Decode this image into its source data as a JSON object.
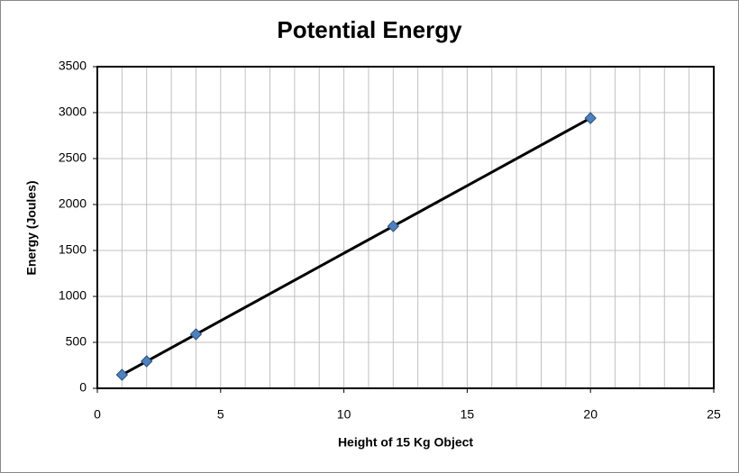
{
  "chart_data": {
    "type": "line",
    "title": "Potential Energy",
    "xlabel": "Height of 15 Kg Object",
    "ylabel": "Energy (Joules)",
    "x": [
      1,
      2,
      4,
      12,
      20
    ],
    "series": [
      {
        "values": [
          147,
          294,
          588,
          1764,
          2940
        ],
        "color": "#000000",
        "marker_color": "#4f81bd"
      }
    ],
    "xlim": [
      0,
      25
    ],
    "xticks": [
      0,
      5,
      10,
      15,
      20,
      25
    ],
    "xgrid": [
      1,
      2,
      3,
      4,
      5,
      6,
      7,
      8,
      9,
      10,
      11,
      12,
      13,
      14,
      15,
      16,
      17,
      18,
      19,
      20,
      21,
      22,
      23,
      24
    ],
    "ylim": [
      0,
      3500
    ],
    "yticks": [
      0,
      500,
      1000,
      1500,
      2000,
      2500,
      3000,
      3500
    ],
    "grid": true
  }
}
